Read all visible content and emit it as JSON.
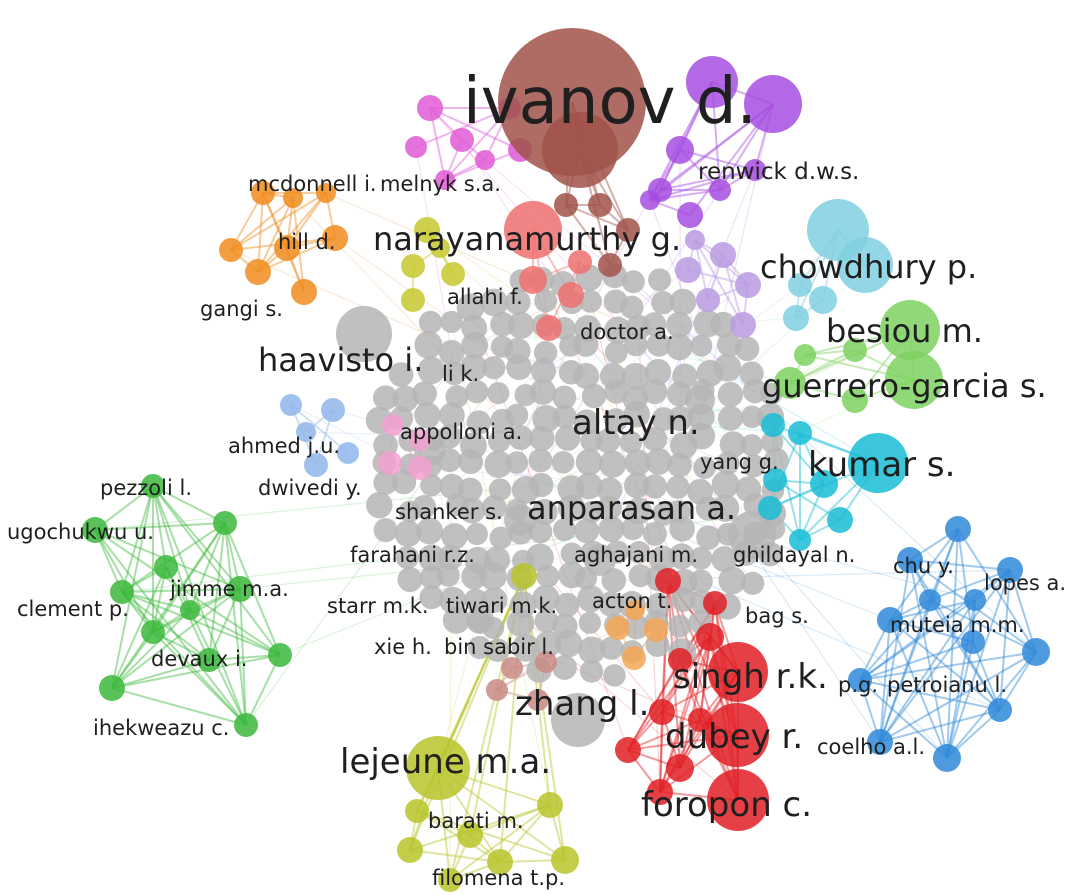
{
  "colors": {
    "gray": "#b5b5b5",
    "brown": "#a0524a",
    "purple": "#a64ee0",
    "pink": "#e05ad6",
    "orange": "#f08c1e",
    "olive": "#c8c830",
    "salmon": "#ef7070",
    "lavender": "#b99ae0",
    "lightblue": "#80cfe0",
    "lightgreen": "#7ed160",
    "cyan": "#19bcd6",
    "blue": "#2f88d8",
    "green": "#3cb83c",
    "red": "#e01e24",
    "peach": "#f5a655",
    "rose": "#c98a86",
    "paleblue": "#8fb6ea",
    "lightpink": "#f2a0d0",
    "yellowgreen": "#b8c42a"
  },
  "labels": {
    "ivanov": "ivanov d.",
    "renwick": "renwick d.w.s.",
    "mcdonnell": "mcdonnell i.",
    "melnyk": "melnyk s.a.",
    "hill": "hill d.",
    "gangi": "gangi s.",
    "narayanamurthy": "narayanamurthy g.",
    "allahi": "allahi f.",
    "doctor": "doctor a.",
    "chowdhury": "chowdhury p.",
    "besiou": "besiou m.",
    "haavisto": "haavisto i.",
    "lik": "li k.",
    "guerrero": "guerrero-garcia s.",
    "appolloni": "appolloni a.",
    "altay": "altay n.",
    "ahmed": "ahmed j.u.",
    "dwivedi": "dwivedi y.",
    "yang": "yang g.",
    "kumar": "kumar s.",
    "pezzoli": "pezzoli l.",
    "shanker": "shanker s.",
    "anparasan": "anparasan a.",
    "ugochukwu": "ugochukwu u.",
    "farahani": "farahani r.z.",
    "aghajani": "aghajani m.",
    "ghildayal": "ghildayal n.",
    "chu": "chu y.",
    "lopes": "lopes a.",
    "jimme": "jimme m.a.",
    "clement": "clement p.",
    "starr": "starr m.k.",
    "tiwari": "tiwari m.k.",
    "acton": "acton t.",
    "bag": "bag s.",
    "muteia": "muteia m.m.",
    "devaux": "devaux i.",
    "xie": "xie h.",
    "binsabir": "bin sabir l.",
    "singh": "singh r.k.",
    "pg": "p.g.",
    "petroianu": "petroianu l.",
    "zhang": "zhang l.",
    "ihekweazu": "ihekweazu c.",
    "dubey": "dubey r.",
    "coelho": "coelho a.l.",
    "lejeune": "lejeune m.a.",
    "foropon": "foropon c.",
    "barati": "barati m.",
    "filomena": "filomena t.p."
  }
}
